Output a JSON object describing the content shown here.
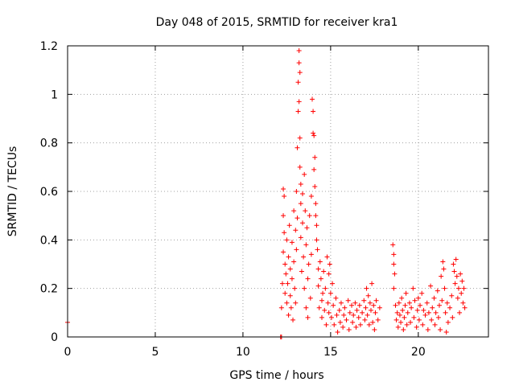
{
  "chart_data": {
    "type": "scatter",
    "title": "Day 048 of 2015, SRMTID for receiver kra1",
    "xlabel": "GPS time / hours",
    "ylabel": "SRMTID / TECUs",
    "xlim": [
      0,
      24
    ],
    "ylim": [
      0,
      1.2
    ],
    "grid": true,
    "marker": "+",
    "series_color": "#ff0000",
    "x_ticks": [
      {
        "value": 0,
        "label": "0"
      },
      {
        "value": 5,
        "label": "5"
      },
      {
        "value": 10,
        "label": "10"
      },
      {
        "value": 15,
        "label": "15"
      },
      {
        "value": 20,
        "label": "20"
      }
    ],
    "y_ticks": [
      {
        "value": 0,
        "label": "0"
      },
      {
        "value": 0.2,
        "label": "0.2"
      },
      {
        "value": 0.4,
        "label": "0.4"
      },
      {
        "value": 0.6,
        "label": "0.6"
      },
      {
        "value": 0.8,
        "label": "0.8"
      },
      {
        "value": 1.0,
        "label": "1"
      },
      {
        "value": 1.2,
        "label": "1.2"
      }
    ],
    "points": [
      [
        0.0,
        0.06
      ],
      [
        12.15,
        0.0
      ],
      [
        12.2,
        0.0
      ],
      [
        12.2,
        0.12
      ],
      [
        12.25,
        0.22
      ],
      [
        12.3,
        0.35
      ],
      [
        12.3,
        0.5
      ],
      [
        12.3,
        0.61
      ],
      [
        12.35,
        0.58
      ],
      [
        12.35,
        0.43
      ],
      [
        12.4,
        0.3
      ],
      [
        12.4,
        0.18
      ],
      [
        12.45,
        0.26
      ],
      [
        12.5,
        0.4
      ],
      [
        12.5,
        0.14
      ],
      [
        12.55,
        0.22
      ],
      [
        12.6,
        0.33
      ],
      [
        12.6,
        0.09
      ],
      [
        12.65,
        0.46
      ],
      [
        12.7,
        0.28
      ],
      [
        12.7,
        0.17
      ],
      [
        12.75,
        0.12
      ],
      [
        12.8,
        0.39
      ],
      [
        12.8,
        0.24
      ],
      [
        12.85,
        0.07
      ],
      [
        12.9,
        0.52
      ],
      [
        12.9,
        0.31
      ],
      [
        12.95,
        0.2
      ],
      [
        13.0,
        0.44
      ],
      [
        13.0,
        0.14
      ],
      [
        13.05,
        0.6
      ],
      [
        13.05,
        0.36
      ],
      [
        13.1,
        0.78
      ],
      [
        13.1,
        0.49
      ],
      [
        13.15,
        0.93
      ],
      [
        13.15,
        1.05
      ],
      [
        13.2,
        1.18
      ],
      [
        13.2,
        1.13
      ],
      [
        13.2,
        0.97
      ],
      [
        13.25,
        1.09
      ],
      [
        13.25,
        0.82
      ],
      [
        13.25,
        0.7
      ],
      [
        13.3,
        0.63
      ],
      [
        13.3,
        0.55
      ],
      [
        13.3,
        0.41
      ],
      [
        13.35,
        0.27
      ],
      [
        13.4,
        0.59
      ],
      [
        13.4,
        0.47
      ],
      [
        13.45,
        0.33
      ],
      [
        13.5,
        0.67
      ],
      [
        13.5,
        0.2
      ],
      [
        13.55,
        0.52
      ],
      [
        13.6,
        0.38
      ],
      [
        13.6,
        0.12
      ],
      [
        13.65,
        0.45
      ],
      [
        13.7,
        0.24
      ],
      [
        13.7,
        0.08
      ],
      [
        13.75,
        0.3
      ],
      [
        13.8,
        0.5
      ],
      [
        13.85,
        0.16
      ],
      [
        13.9,
        0.58
      ],
      [
        13.9,
        0.34
      ],
      [
        13.95,
        0.98
      ],
      [
        14.0,
        0.93
      ],
      [
        14.0,
        0.84
      ],
      [
        14.05,
        0.83
      ],
      [
        14.05,
        0.69
      ],
      [
        14.1,
        0.74
      ],
      [
        14.1,
        0.62
      ],
      [
        14.15,
        0.5
      ],
      [
        14.15,
        0.55
      ],
      [
        14.2,
        0.46
      ],
      [
        14.2,
        0.4
      ],
      [
        14.25,
        0.36
      ],
      [
        14.3,
        0.28
      ],
      [
        14.3,
        0.21
      ],
      [
        14.35,
        0.12
      ],
      [
        14.4,
        0.31
      ],
      [
        14.45,
        0.24
      ],
      [
        14.5,
        0.15
      ],
      [
        14.5,
        0.08
      ],
      [
        14.55,
        0.18
      ],
      [
        14.6,
        0.27
      ],
      [
        14.65,
        0.11
      ],
      [
        14.7,
        0.2
      ],
      [
        14.75,
        0.05
      ],
      [
        14.8,
        0.33
      ],
      [
        14.85,
        0.14
      ],
      [
        14.9,
        0.26
      ],
      [
        14.9,
        0.1
      ],
      [
        14.95,
        0.3
      ],
      [
        15.0,
        0.18
      ],
      [
        15.05,
        0.08
      ],
      [
        15.1,
        0.22
      ],
      [
        15.15,
        0.13
      ],
      [
        15.2,
        0.05
      ],
      [
        15.3,
        0.16
      ],
      [
        15.35,
        0.09
      ],
      [
        15.4,
        0.02
      ],
      [
        15.5,
        0.11
      ],
      [
        15.55,
        0.06
      ],
      [
        15.6,
        0.14
      ],
      [
        15.7,
        0.04
      ],
      [
        15.75,
        0.09
      ],
      [
        15.8,
        0.12
      ],
      [
        15.9,
        0.07
      ],
      [
        16.0,
        0.15
      ],
      [
        16.05,
        0.03
      ],
      [
        16.1,
        0.1
      ],
      [
        16.2,
        0.13
      ],
      [
        16.25,
        0.06
      ],
      [
        16.3,
        0.09
      ],
      [
        16.4,
        0.14
      ],
      [
        16.45,
        0.04
      ],
      [
        16.5,
        0.11
      ],
      [
        16.6,
        0.08
      ],
      [
        16.65,
        0.13
      ],
      [
        16.7,
        0.05
      ],
      [
        16.8,
        0.1
      ],
      [
        16.9,
        0.15
      ],
      [
        16.95,
        0.07
      ],
      [
        17.0,
        0.12
      ],
      [
        17.05,
        0.2
      ],
      [
        17.1,
        0.09
      ],
      [
        17.15,
        0.17
      ],
      [
        17.2,
        0.05
      ],
      [
        17.25,
        0.14
      ],
      [
        17.3,
        0.11
      ],
      [
        17.35,
        0.22
      ],
      [
        17.4,
        0.06
      ],
      [
        17.45,
        0.13
      ],
      [
        17.5,
        0.03
      ],
      [
        17.55,
        0.1
      ],
      [
        17.6,
        0.15
      ],
      [
        17.7,
        0.07
      ],
      [
        17.8,
        0.12
      ],
      [
        18.55,
        0.38
      ],
      [
        18.6,
        0.34
      ],
      [
        18.6,
        0.3
      ],
      [
        18.65,
        0.26
      ],
      [
        18.6,
        0.2
      ],
      [
        18.7,
        0.13
      ],
      [
        18.75,
        0.07
      ],
      [
        18.8,
        0.1
      ],
      [
        18.85,
        0.04
      ],
      [
        18.9,
        0.14
      ],
      [
        18.95,
        0.09
      ],
      [
        19.0,
        0.06
      ],
      [
        19.05,
        0.16
      ],
      [
        19.1,
        0.11
      ],
      [
        19.15,
        0.03
      ],
      [
        19.2,
        0.08
      ],
      [
        19.25,
        0.13
      ],
      [
        19.3,
        0.18
      ],
      [
        19.35,
        0.05
      ],
      [
        19.4,
        0.1
      ],
      [
        19.5,
        0.14
      ],
      [
        19.55,
        0.06
      ],
      [
        19.6,
        0.12
      ],
      [
        19.7,
        0.2
      ],
      [
        19.75,
        0.08
      ],
      [
        19.8,
        0.15
      ],
      [
        19.9,
        0.04
      ],
      [
        19.95,
        0.11
      ],
      [
        20.0,
        0.16
      ],
      [
        20.05,
        0.07
      ],
      [
        20.1,
        0.13
      ],
      [
        20.2,
        0.18
      ],
      [
        20.25,
        0.05
      ],
      [
        20.3,
        0.11
      ],
      [
        20.4,
        0.09
      ],
      [
        20.5,
        0.14
      ],
      [
        20.55,
        0.03
      ],
      [
        20.6,
        0.1
      ],
      [
        20.7,
        0.21
      ],
      [
        20.75,
        0.07
      ],
      [
        20.8,
        0.12
      ],
      [
        20.9,
        0.16
      ],
      [
        20.95,
        0.05
      ],
      [
        21.0,
        0.1
      ],
      [
        21.1,
        0.19
      ],
      [
        21.15,
        0.08
      ],
      [
        21.2,
        0.13
      ],
      [
        21.25,
        0.03
      ],
      [
        21.3,
        0.25
      ],
      [
        21.35,
        0.15
      ],
      [
        21.4,
        0.31
      ],
      [
        21.45,
        0.28
      ],
      [
        21.5,
        0.2
      ],
      [
        21.55,
        0.1
      ],
      [
        21.6,
        0.02
      ],
      [
        21.65,
        0.14
      ],
      [
        21.7,
        0.06
      ],
      [
        21.8,
        0.12
      ],
      [
        21.9,
        0.17
      ],
      [
        21.95,
        0.08
      ],
      [
        22.0,
        0.3
      ],
      [
        22.05,
        0.27
      ],
      [
        22.1,
        0.22
      ],
      [
        22.15,
        0.32
      ],
      [
        22.2,
        0.25
      ],
      [
        22.25,
        0.16
      ],
      [
        22.3,
        0.2
      ],
      [
        22.35,
        0.1
      ],
      [
        22.4,
        0.26
      ],
      [
        22.45,
        0.18
      ],
      [
        22.5,
        0.23
      ],
      [
        22.55,
        0.14
      ],
      [
        22.6,
        0.2
      ],
      [
        22.65,
        0.12
      ]
    ]
  }
}
